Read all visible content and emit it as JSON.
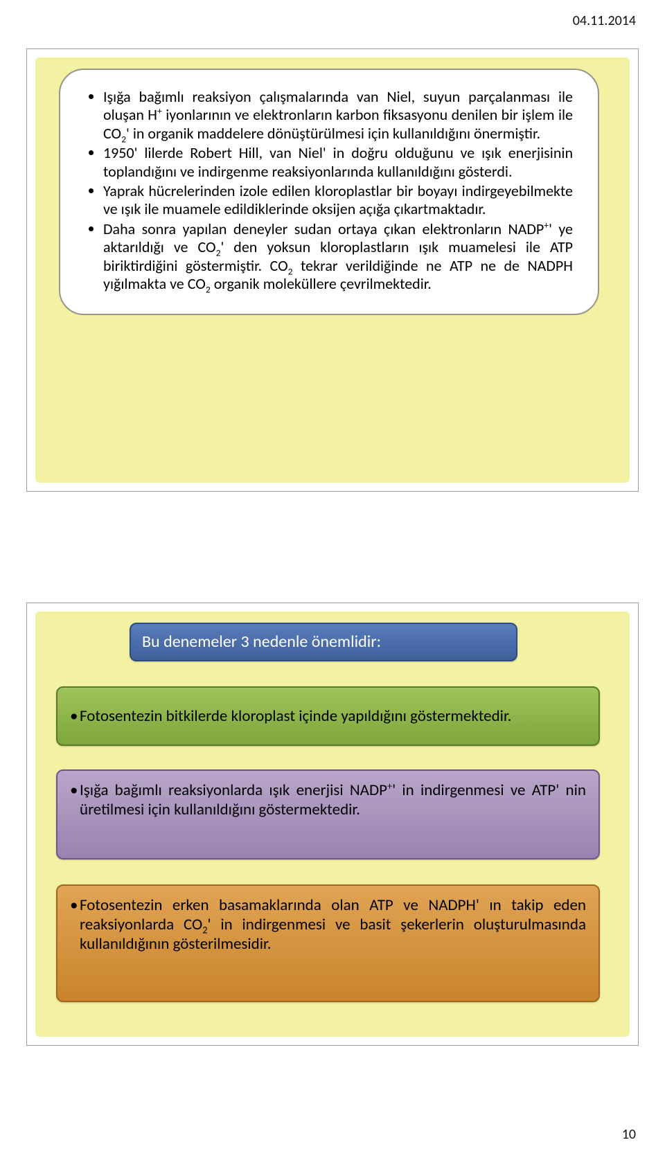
{
  "header": {
    "date": "04.11.2014"
  },
  "footer": {
    "page": "10"
  },
  "slide1": {
    "bg_color": "#f3f2a3",
    "box_border": "#9a9489",
    "bullets": [
      "Işığa bağımlı reaksiyon çalışmalarında van Niel, suyun parçalanması ile oluşan H<span class=\"sup\">+</span> iyonlarının ve elektronların karbon fiksasyonu denilen bir işlem ile CO<span class=\"sub\">2</span>' in organik maddelere dönüştürülmesi için kullanıldığını önermiştir.",
      "1950' lilerde Robert Hill, van Niel' in doğru olduğunu ve ışık enerjisinin toplandığını ve indirgenme reaksiyonlarında kullanıldığını gösterdi.",
      "Yaprak hücrelerinden izole edilen kloroplastlar bir boyayı indirgeyebilmekte ve ışık ile muamele edildiklerinde oksijen açığa çıkartmaktadır.",
      "Daha sonra yapılan deneyler sudan ortaya çıkan elektronların NADP<span class=\"sup\">+</span>' ye aktarıldığı ve CO<span class=\"sub\">2</span>' den yoksun kloroplastların ışık muamelesi ile ATP biriktirdiğini göstermiştir. CO<span class=\"sub\">2</span> tekrar verildiğinde ne ATP ne de NADPH yığılmakta ve CO<span class=\"sub\">2</span> organik moleküllere çevrilmektedir."
    ]
  },
  "slide2": {
    "bg_color": "#f3f2a3",
    "title_box": {
      "text": "Bu denemeler 3 nedenle önemlidir:",
      "fill": "#5a7dbb",
      "fill2": "#3e5f9a",
      "border": "#2f4d82",
      "text_color": "#ffffff"
    },
    "box_a": {
      "text": "•Fotosentezin bitkilerde kloroplast içinde yapıldığını göstermektedir.",
      "fill": "#9fc45b",
      "fill2": "#7ea63c",
      "border": "#5a7a26"
    },
    "box_b": {
      "text": "•Işığa bağımlı reaksiyonlarda ışık enerjisi NADP<span class=\"sup\">+</span>' in indirgenmesi ve ATP' nin üretilmesi için kullanıldığını göstermektedir.",
      "fill": "#b9a5c9",
      "fill2": "#9a82b0",
      "border": "#6d5688"
    },
    "box_c": {
      "text": "•Fotosentezin erken basamaklarında olan ATP ve NADPH' ın takip eden reaksiyonlarda CO<span class=\"sub\">2</span>' in indirgenmesi ve basit şekerlerin oluşturulmasında kullanıldığının gösterilmesidir.",
      "fill": "#e0a455",
      "fill2": "#c9842b",
      "border": "#a0671f"
    }
  }
}
